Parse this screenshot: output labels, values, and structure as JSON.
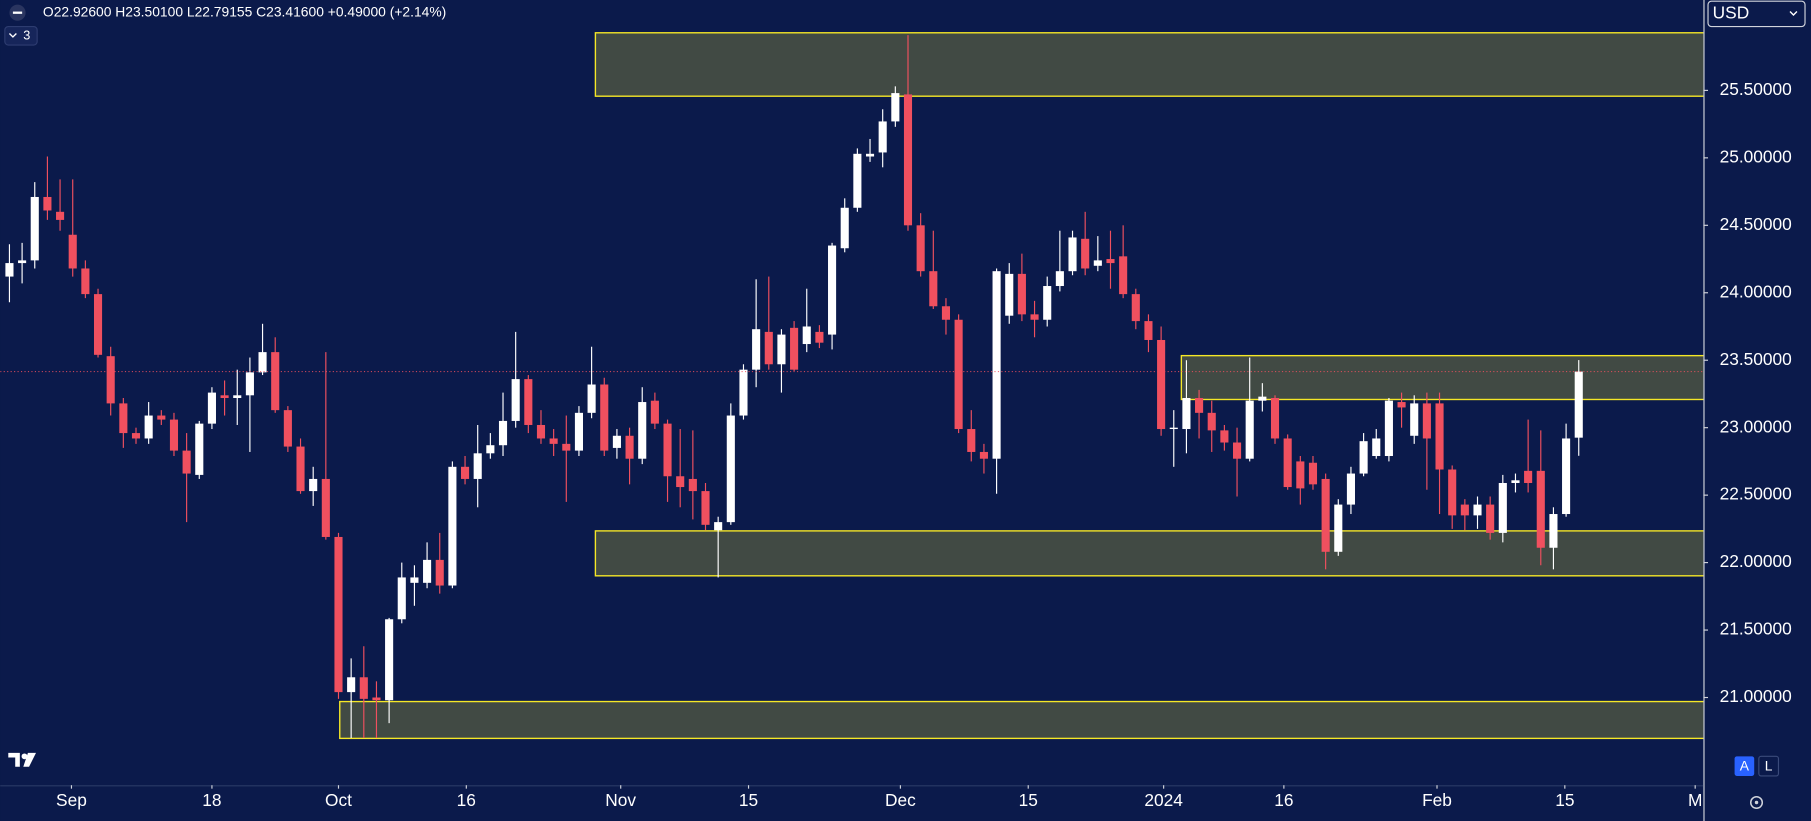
{
  "header": {
    "ohlc": "O22.92600 H23.50100 L22.79155 C23.41600 +0.49000 (+2.14%)",
    "indicators": "3"
  },
  "currency": "USD",
  "buttons": [
    "A",
    "L"
  ],
  "chart_data": {
    "type": "candlestick",
    "open": [
      24.12,
      24.22,
      24.24,
      24.71,
      24.6,
      24.43,
      24.18,
      23.99,
      23.53,
      23.18,
      22.96,
      22.92,
      23.09,
      23.06,
      22.83,
      22.65,
      23.03,
      23.24,
      23.22,
      23.24,
      23.41,
      23.56,
      23.13,
      22.86,
      22.53,
      22.62,
      22.19,
      21.04,
      21.15,
      21.0,
      20.98,
      21.58,
      21.85,
      21.85,
      22.02,
      21.83,
      22.71,
      22.62,
      22.81,
      22.87,
      23.05,
      23.36,
      23.02,
      22.92,
      22.88,
      22.83,
      23.11,
      23.32,
      22.85,
      22.94,
      22.77,
      23.2,
      23.03,
      22.64,
      22.62,
      22.53,
      22.24,
      22.3,
      23.09,
      23.43,
      23.71,
      23.47,
      23.74,
      23.62,
      23.71,
      23.69,
      24.33,
      24.63,
      25.01,
      25.04,
      25.27,
      25.47,
      24.5,
      24.16,
      23.9,
      23.8,
      22.99,
      22.82,
      22.77,
      23.83,
      24.14,
      23.84,
      23.8,
      24.05,
      24.16,
      24.4,
      24.2,
      24.25,
      24.27,
      23.99,
      23.79,
      23.65,
      22.99,
      22.99,
      23.22,
      23.11,
      22.98,
      22.89,
      22.77,
      23.2,
      23.22,
      22.92,
      22.75,
      22.74,
      22.62,
      22.08,
      22.43,
      22.66,
      22.79,
      22.79,
      23.19,
      22.94,
      23.18,
      23.18,
      22.69,
      22.43,
      22.35,
      22.43,
      22.22,
      22.59,
      22.68,
      22.68,
      22.11,
      22.36,
      22.926
    ],
    "high": [
      24.36,
      24.37,
      24.82,
      25.01,
      24.84,
      24.84,
      24.24,
      24.03,
      23.6,
      23.22,
      23.0,
      23.19,
      23.13,
      23.11,
      22.96,
      23.05,
      23.3,
      23.35,
      23.43,
      23.52,
      23.77,
      23.67,
      23.16,
      22.92,
      22.71,
      23.56,
      22.22,
      21.29,
      21.38,
      21.12,
      21.59,
      22.0,
      21.98,
      22.15,
      22.22,
      22.75,
      22.79,
      23.02,
      22.96,
      23.26,
      23.71,
      23.39,
      23.13,
      22.99,
      23.09,
      23.16,
      23.6,
      23.37,
      22.99,
      23.0,
      23.3,
      23.26,
      23.06,
      22.99,
      22.98,
      22.59,
      22.34,
      23.18,
      23.47,
      24.1,
      24.12,
      23.73,
      23.79,
      24.03,
      23.76,
      24.37,
      24.7,
      25.07,
      25.14,
      25.36,
      25.53,
      25.91,
      24.59,
      24.46,
      23.96,
      23.84,
      23.13,
      22.88,
      24.18,
      24.22,
      24.29,
      23.94,
      24.12,
      24.46,
      24.46,
      24.6,
      24.42,
      24.46,
      24.5,
      24.03,
      23.84,
      23.75,
      23.13,
      23.5,
      23.28,
      23.2,
      23.02,
      23.0,
      23.52,
      23.33,
      23.24,
      22.95,
      22.79,
      22.79,
      22.66,
      22.47,
      22.71,
      22.96,
      22.99,
      23.22,
      23.26,
      23.24,
      23.26,
      23.26,
      22.72,
      22.47,
      22.49,
      22.49,
      22.65,
      22.66,
      23.06,
      22.98,
      22.41,
      23.03,
      23.501
    ],
    "low": [
      23.93,
      24.07,
      24.18,
      24.54,
      24.46,
      24.12,
      23.96,
      23.52,
      23.09,
      22.85,
      22.88,
      22.88,
      23.02,
      22.79,
      22.3,
      22.62,
      22.99,
      23.09,
      23.02,
      22.82,
      23.39,
      23.11,
      22.82,
      22.51,
      22.42,
      22.17,
      20.99,
      20.7,
      20.7,
      20.7,
      20.81,
      21.55,
      21.68,
      21.81,
      21.77,
      21.81,
      22.58,
      22.41,
      22.77,
      22.79,
      23.0,
      22.96,
      22.88,
      22.79,
      22.45,
      22.79,
      23.07,
      22.79,
      22.77,
      22.58,
      22.73,
      22.99,
      22.45,
      22.41,
      22.32,
      22.24,
      21.89,
      22.28,
      23.06,
      23.3,
      23.43,
      23.26,
      23.42,
      23.56,
      23.59,
      23.58,
      24.3,
      24.6,
      24.97,
      24.93,
      25.23,
      24.46,
      24.12,
      23.88,
      23.69,
      22.96,
      22.75,
      22.66,
      22.51,
      23.77,
      23.79,
      23.67,
      23.75,
      24.01,
      24.13,
      24.13,
      24.16,
      24.03,
      23.96,
      23.73,
      23.56,
      22.94,
      22.71,
      22.81,
      22.92,
      22.82,
      22.83,
      22.49,
      22.75,
      23.12,
      22.88,
      22.54,
      22.43,
      22.54,
      21.95,
      22.05,
      22.36,
      22.64,
      22.77,
      22.75,
      23.0,
      22.88,
      22.54,
      22.36,
      22.25,
      22.24,
      22.25,
      22.17,
      22.15,
      22.52,
      22.52,
      21.98,
      21.95,
      22.34,
      22.79155
    ],
    "close": [
      24.22,
      24.24,
      24.71,
      24.61,
      24.54,
      24.18,
      23.99,
      23.54,
      23.18,
      22.96,
      22.92,
      23.09,
      23.06,
      22.83,
      22.66,
      23.03,
      23.26,
      23.22,
      23.24,
      23.41,
      23.56,
      23.13,
      22.86,
      22.53,
      22.62,
      22.19,
      21.04,
      21.15,
      20.99,
      20.98,
      21.58,
      21.89,
      21.89,
      22.02,
      21.83,
      22.71,
      22.62,
      22.81,
      22.87,
      23.05,
      23.36,
      23.02,
      22.92,
      22.88,
      22.83,
      23.11,
      23.32,
      22.83,
      22.94,
      22.77,
      23.19,
      23.03,
      22.64,
      22.56,
      22.53,
      22.28,
      22.3,
      23.09,
      23.43,
      23.73,
      23.47,
      23.69,
      23.43,
      23.75,
      23.63,
      24.35,
      24.63,
      25.03,
      25.03,
      25.27,
      25.48,
      24.5,
      24.16,
      23.9,
      23.8,
      22.99,
      22.82,
      22.77,
      24.16,
      24.14,
      23.84,
      23.8,
      24.05,
      24.16,
      24.41,
      24.18,
      24.24,
      24.22,
      23.99,
      23.79,
      23.65,
      22.99,
      23.0,
      23.22,
      23.11,
      22.98,
      22.89,
      22.77,
      23.2,
      23.23,
      22.92,
      22.56,
      22.55,
      22.58,
      22.08,
      22.43,
      22.66,
      22.9,
      22.92,
      23.2,
      23.15,
      23.18,
      22.92,
      22.69,
      22.35,
      22.35,
      22.43,
      22.22,
      22.59,
      22.61,
      22.59,
      22.11,
      22.36,
      22.92,
      23.416
    ],
    "up_color": "#ffffff",
    "down_color": "#f0505f",
    "xlim": [
      -0.73,
      133.85
    ],
    "xticks": [
      {
        "value": 4.9,
        "label": "Sep"
      },
      {
        "value": 16,
        "label": "18"
      },
      {
        "value": 26,
        "label": "Oct"
      },
      {
        "value": 36.1,
        "label": "16"
      },
      {
        "value": 48.3,
        "label": "Nov"
      },
      {
        "value": 58.4,
        "label": "15"
      },
      {
        "value": 70.4,
        "label": "Dec"
      },
      {
        "value": 80.5,
        "label": "15"
      },
      {
        "value": 91.2,
        "label": "2024"
      },
      {
        "value": 100.7,
        "label": "16"
      },
      {
        "value": 112.8,
        "label": "Feb"
      },
      {
        "value": 122.9,
        "label": "15"
      },
      {
        "value": 133.2,
        "label": "M"
      }
    ],
    "ylim": [
      20.35,
      26.17
    ],
    "yticks": [
      {
        "value": 21,
        "label": "21.00000"
      },
      {
        "value": 21.5,
        "label": "21.50000"
      },
      {
        "value": 22,
        "label": "22.00000"
      },
      {
        "value": 22.5,
        "label": "22.50000"
      },
      {
        "value": 23,
        "label": "23.00000"
      },
      {
        "value": 23.5,
        "label": "23.50000"
      },
      {
        "value": 24,
        "label": "24.00000"
      },
      {
        "value": 24.5,
        "label": "24.50000"
      },
      {
        "value": 25,
        "label": "25.00000"
      },
      {
        "value": 25.5,
        "label": "25.50000"
      }
    ],
    "zones": [
      {
        "from": 25.457,
        "to": 25.927,
        "start": 46.3
      },
      {
        "from": 23.209,
        "to": 23.534,
        "start": 92.6
      },
      {
        "from": 21.902,
        "to": 22.235,
        "start": 46.3
      },
      {
        "from": 20.697,
        "to": 20.97,
        "start": 26.1
      }
    ],
    "zone_color": "#414a44",
    "zone_border": "#f5e727"
  }
}
